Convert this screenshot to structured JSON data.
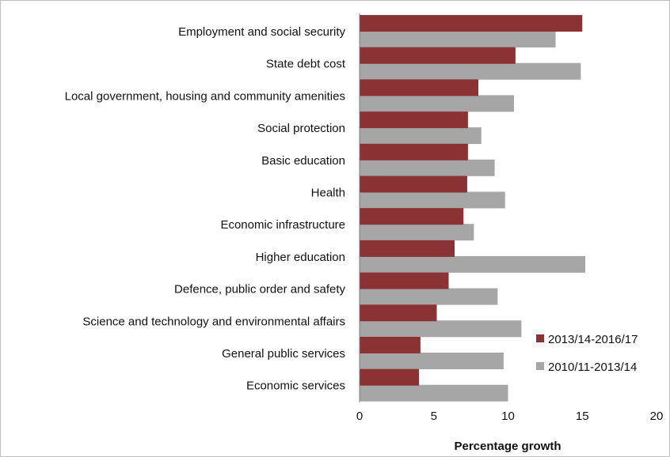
{
  "chart_data": {
    "type": "bar",
    "orientation": "horizontal",
    "categories": [
      "Employment and social security",
      "State debt cost",
      "Local government, housing and community amenities",
      "Social protection",
      "Basic education",
      "Health",
      "Economic infrastructure",
      "Higher education",
      "Defence, public order and safety",
      "Science and technology and environmental affairs",
      "General public services",
      "Economic services"
    ],
    "series": [
      {
        "name": "2013/14-2016/17",
        "color": "#8b3234",
        "values": [
          15.0,
          10.5,
          8.0,
          7.3,
          7.3,
          7.25,
          7.0,
          6.4,
          6.0,
          5.2,
          4.1,
          4.0
        ]
      },
      {
        "name": "2010/11-2013/14",
        "color": "#a6a6a6",
        "values": [
          13.2,
          14.9,
          10.4,
          8.2,
          9.1,
          9.8,
          7.7,
          15.2,
          9.3,
          10.9,
          9.7,
          10.0
        ]
      }
    ],
    "xlabel": "Percentage growth",
    "ylabel": "",
    "xlim": [
      0,
      20
    ],
    "xticks": [
      0,
      5,
      10,
      15,
      20
    ],
    "grid": false,
    "legend_position": "bottom-right"
  }
}
